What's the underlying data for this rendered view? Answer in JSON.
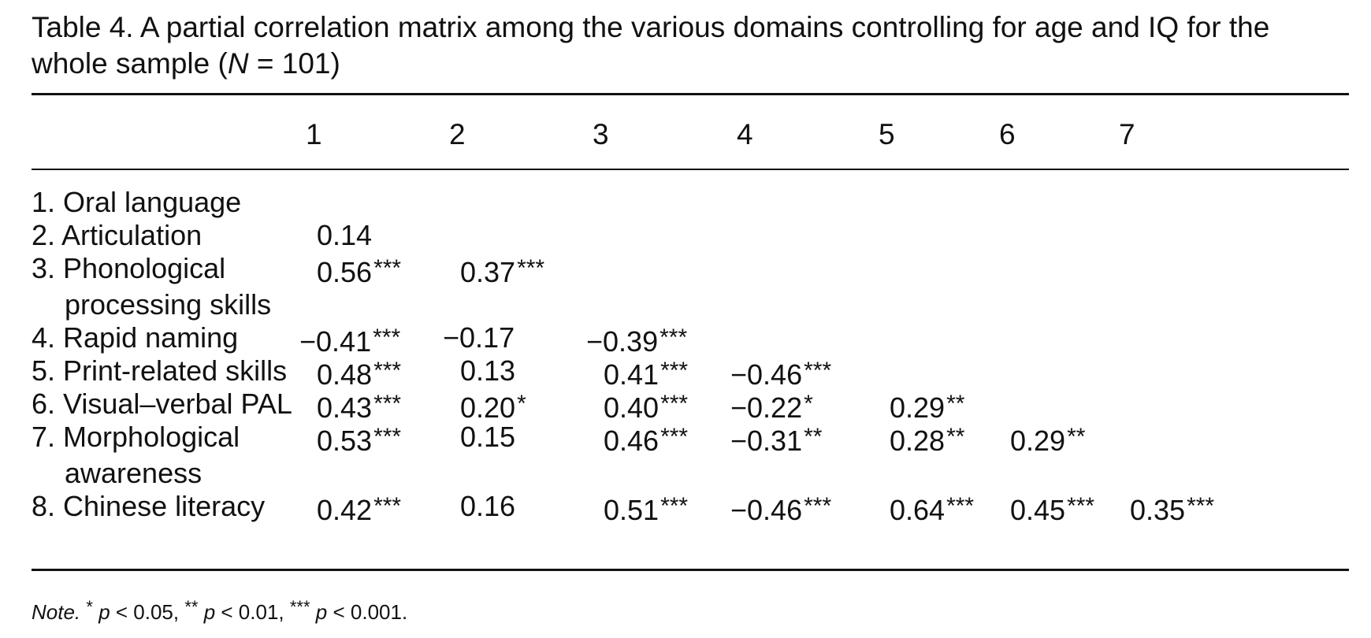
{
  "caption": {
    "line1": "Table 4.  A partial correlation matrix among the various domains controlling for age and IQ for the",
    "line2_pre": "whole sample (",
    "n_symbol": "N",
    "line2_post": " = 101)"
  },
  "columns": [
    "1",
    "2",
    "3",
    "4",
    "5",
    "6",
    "7"
  ],
  "rows": [
    {
      "label": [
        "1. Oral language"
      ],
      "cells": []
    },
    {
      "label": [
        "2. Articulation"
      ],
      "cells": [
        {
          "v": "0.14",
          "s": ""
        }
      ]
    },
    {
      "label": [
        "3. Phonological",
        "processing skills"
      ],
      "cells": [
        {
          "v": "0.56",
          "s": "***"
        },
        {
          "v": "0.37",
          "s": "***"
        }
      ]
    },
    {
      "label": [
        "4. Rapid naming"
      ],
      "cells": [
        {
          "v": "−0.41",
          "s": "***"
        },
        {
          "v": "−0.17",
          "s": ""
        },
        {
          "v": "−0.39",
          "s": "***"
        }
      ]
    },
    {
      "label": [
        "5. Print-related skills"
      ],
      "cells": [
        {
          "v": "0.48",
          "s": "***"
        },
        {
          "v": "0.13",
          "s": ""
        },
        {
          "v": "0.41",
          "s": "***"
        },
        {
          "v": "−0.46",
          "s": "***"
        }
      ]
    },
    {
      "label": [
        "6. Visual–verbal PAL"
      ],
      "cells": [
        {
          "v": "0.43",
          "s": "***"
        },
        {
          "v": "0.20",
          "s": "*"
        },
        {
          "v": "0.40",
          "s": "***"
        },
        {
          "v": "−0.22",
          "s": "*"
        },
        {
          "v": "0.29",
          "s": "**"
        }
      ]
    },
    {
      "label": [
        "7. Morphological",
        "awareness"
      ],
      "cells": [
        {
          "v": "0.53",
          "s": "***"
        },
        {
          "v": "0.15",
          "s": ""
        },
        {
          "v": "0.46",
          "s": "***"
        },
        {
          "v": "−0.31",
          "s": "**"
        },
        {
          "v": "0.28",
          "s": "**"
        },
        {
          "v": "0.29",
          "s": "**"
        }
      ]
    },
    {
      "label": [
        "8. Chinese literacy"
      ],
      "cells": [
        {
          "v": "0.42",
          "s": "***"
        },
        {
          "v": "0.16",
          "s": ""
        },
        {
          "v": "0.51",
          "s": "***"
        },
        {
          "v": "−0.46",
          "s": "***"
        },
        {
          "v": "0.64",
          "s": "***"
        },
        {
          "v": "0.45",
          "s": "***"
        },
        {
          "v": "0.35",
          "s": "***"
        }
      ]
    }
  ],
  "note": {
    "label": "Note.",
    "items": [
      {
        "stars": "*",
        "p": "p",
        "text": " < 0.05, "
      },
      {
        "stars": "**",
        "p": "p",
        "text": " < 0.01, "
      },
      {
        "stars": "***",
        "p": "p",
        "text": " < 0.001."
      }
    ]
  }
}
